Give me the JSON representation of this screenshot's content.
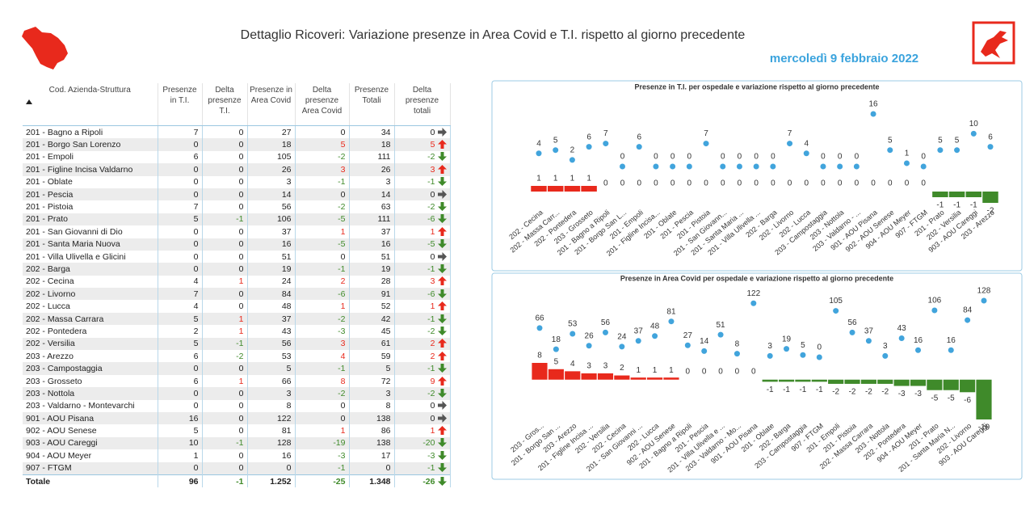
{
  "header": {
    "title": "Dettaglio Ricoveri: Variazione presenze in Area Covid e T.I. rispetto al giorno precedente",
    "date": "mercoledì 9 febbraio 2022"
  },
  "table": {
    "columns": [
      "Cod. Azienda-Struttura",
      "Presenze in T.I.",
      "Delta presenze T.I.",
      "Presenze in Area Covid",
      "Delta presenze Area Covid",
      "Presenze Totali",
      "Delta presenze totali"
    ],
    "rows": [
      [
        "201 - Bagno a Ripoli",
        7,
        0,
        27,
        0,
        34,
        0
      ],
      [
        "201 - Borgo San Lorenzo",
        0,
        0,
        18,
        5,
        18,
        5
      ],
      [
        "201 - Empoli",
        6,
        0,
        105,
        -2,
        111,
        -2
      ],
      [
        "201 - Figline Incisa Valdarno",
        0,
        0,
        26,
        3,
        26,
        3
      ],
      [
        "201 - Oblate",
        0,
        0,
        3,
        -1,
        3,
        -1
      ],
      [
        "201 - Pescia",
        0,
        0,
        14,
        0,
        14,
        0
      ],
      [
        "201 - Pistoia",
        7,
        0,
        56,
        -2,
        63,
        -2
      ],
      [
        "201 - Prato",
        5,
        -1,
        106,
        -5,
        111,
        -6
      ],
      [
        "201 - San Giovanni di Dio",
        0,
        0,
        37,
        1,
        37,
        1
      ],
      [
        "201 - Santa Maria Nuova",
        0,
        0,
        16,
        -5,
        16,
        -5
      ],
      [
        "201 - Villa Ulivella e Glicini",
        0,
        0,
        51,
        0,
        51,
        0
      ],
      [
        "202 - Barga",
        0,
        0,
        19,
        -1,
        19,
        -1
      ],
      [
        "202 - Cecina",
        4,
        1,
        24,
        2,
        28,
        3
      ],
      [
        "202 - Livorno",
        7,
        0,
        84,
        -6,
        91,
        -6
      ],
      [
        "202 - Lucca",
        4,
        0,
        48,
        1,
        52,
        1
      ],
      [
        "202 - Massa Carrara",
        5,
        1,
        37,
        -2,
        42,
        -1
      ],
      [
        "202 - Pontedera",
        2,
        1,
        43,
        -3,
        45,
        -2
      ],
      [
        "202 - Versilia",
        5,
        -1,
        56,
        3,
        61,
        2
      ],
      [
        "203 - Arezzo",
        6,
        -2,
        53,
        4,
        59,
        2
      ],
      [
        "203 - Campostaggia",
        0,
        0,
        5,
        -1,
        5,
        -1
      ],
      [
        "203 - Grosseto",
        6,
        1,
        66,
        8,
        72,
        9
      ],
      [
        "203 - Nottola",
        0,
        0,
        3,
        -2,
        3,
        -2
      ],
      [
        "203 - Valdarno - Montevarchi",
        0,
        0,
        8,
        0,
        8,
        0
      ],
      [
        "901 - AOU Pisana",
        16,
        0,
        122,
        0,
        138,
        0
      ],
      [
        "902 - AOU Senese",
        5,
        0,
        81,
        1,
        86,
        1
      ],
      [
        "903 - AOU Careggi",
        10,
        -1,
        128,
        -19,
        138,
        -20
      ],
      [
        "904 - AOU Meyer",
        1,
        0,
        16,
        -3,
        17,
        -3
      ],
      [
        "907 - FTGM",
        0,
        0,
        0,
        -1,
        0,
        -1
      ]
    ],
    "total": [
      "Totale",
      96,
      -1,
      "1.252",
      -25,
      "1.348",
      -26
    ]
  },
  "chart_data": [
    {
      "type": "combo",
      "title": "Presenze in T.I. per ospedale e variazione rispetto al giorno precedente",
      "categories": [
        "202 - Cecina",
        "202 - Massa Carr...",
        "202 - Pontedera",
        "203 - Grosseto",
        "201 - Bagno a Ripoli",
        "201 - Borgo San L...",
        "201 - Empoli",
        "201 - Figline Incisa...",
        "201 - Oblate",
        "201 - Pescia",
        "201 - Pistoia",
        "201 - San Giovann...",
        "201 - Santa Maria ...",
        "201 - Villa Ulivella ...",
        "202 - Barga",
        "202 - Livorno",
        "202 - Lucca",
        "203 - Campostaggia",
        "203 - Nottola",
        "203 - Valdarno - ...",
        "901 - AOU Pisana",
        "902 - AOU Senese",
        "904 - AOU Meyer",
        "907 - FTGM",
        "201 - Prato",
        "202 - Versilia",
        "903 - AOU Careggi",
        "203 - Arezzo"
      ],
      "series": [
        {
          "color": "#41a4dc",
          "values": [
            4,
            5,
            2,
            6,
            7,
            0,
            6,
            0,
            0,
            0,
            7,
            0,
            0,
            0,
            0,
            7,
            4,
            0,
            0,
            0,
            16,
            5,
            1,
            0,
            5,
            5,
            10,
            6
          ]
        },
        {
          "axis": "y2",
          "color": "#e8291c",
          "negative_color": "#3f8a2a",
          "values": [
            1,
            1,
            1,
            1,
            0,
            0,
            0,
            0,
            0,
            0,
            0,
            0,
            0,
            0,
            0,
            0,
            0,
            0,
            0,
            0,
            0,
            0,
            0,
            0,
            -1,
            -1,
            -1,
            -2
          ]
        }
      ],
      "ylim": [
        0,
        16
      ],
      "y2lim": [
        -2,
        1
      ]
    },
    {
      "type": "combo",
      "title": "Presenze in Area Covid per ospedale e variazione rispetto al giorno precedente",
      "categories": [
        "203 - Gros...",
        "201 - Borgo San ...",
        "203 - Arezzo",
        "201 - Figline Incisa ...",
        "202 - Versilia",
        "202 - Cecina",
        "201 - San Giovanni ...",
        "202 - Lucca",
        "902 - AOU Senese",
        "201 - Bagno a Ripoli",
        "201 - Pescia",
        "201 - Villa Ulivella e ...",
        "203 - Valdarno - Mo...",
        "901 - AOU Pisana",
        "201 - Oblate",
        "202 - Barga",
        "203 - Campostaggia",
        "907 - FTGM",
        "201 - Empoli",
        "201 - Pistoia",
        "202 - Massa Carrara",
        "203 - Nottola",
        "202 - Pontedera",
        "904 - AOU Meyer",
        "201 - Prato",
        "201 - Santa Maria N...",
        "202 - Livorno",
        "903 - AOU Careggi"
      ],
      "series": [
        {
          "color": "#41a4dc",
          "values": [
            66,
            18,
            53,
            26,
            56,
            24,
            37,
            48,
            81,
            27,
            14,
            51,
            8,
            122,
            3,
            19,
            5,
            0,
            105,
            56,
            37,
            3,
            43,
            16,
            106,
            16,
            84,
            128
          ]
        },
        {
          "axis": "y2",
          "color": "#e8291c",
          "negative_color": "#3f8a2a",
          "values": [
            8,
            5,
            4,
            3,
            3,
            2,
            1,
            1,
            1,
            0,
            0,
            0,
            0,
            0,
            -1,
            -1,
            -1,
            -1,
            -2,
            -2,
            -2,
            -2,
            -3,
            -3,
            -5,
            -5,
            -6,
            -19
          ]
        }
      ],
      "ylim": [
        0,
        128
      ],
      "y2lim": [
        -19,
        8
      ]
    }
  ]
}
